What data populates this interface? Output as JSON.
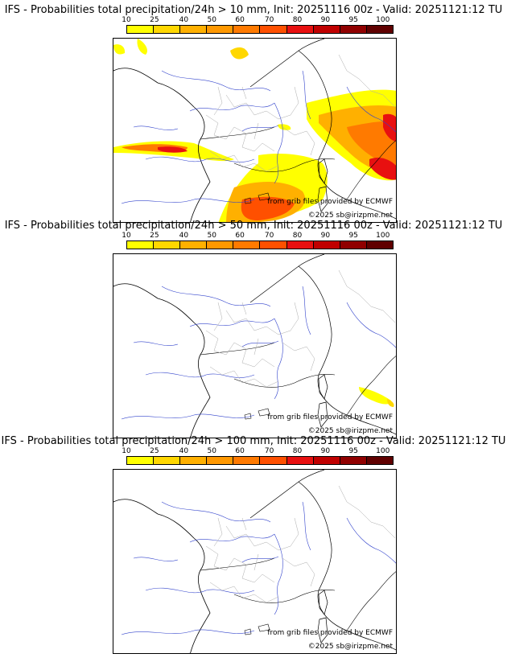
{
  "colorbar": {
    "tick_labels": [
      "10",
      "25",
      "40",
      "50",
      "60",
      "70",
      "80",
      "90",
      "95",
      "100"
    ],
    "colors": [
      "#ffff00",
      "#ffd700",
      "#ffb000",
      "#ff9800",
      "#ff7a00",
      "#ff5000",
      "#e81010",
      "#c00000",
      "#900000",
      "#600000"
    ]
  },
  "panels": [
    {
      "title": "IFS - Probabilities total precipitation/24h > 10 mm, Init: 20251116 00z - Valid: 20251121:12 TU",
      "threshold_mm": 10
    },
    {
      "title": "IFS - Probabilities total precipitation/24h > 50 mm, Init: 20251116 00z - Valid: 20251121:12 TU",
      "threshold_mm": 50
    },
    {
      "title": "IFS - Probabilities total precipitation/24h > 100 mm, Init: 20251116 00z - Valid: 20251121:12 TU",
      "threshold_mm": 100
    }
  ],
  "credits": {
    "source": "from grib files provided by ECMWF",
    "copyright": "©2025 sb@irizpme.net"
  }
}
